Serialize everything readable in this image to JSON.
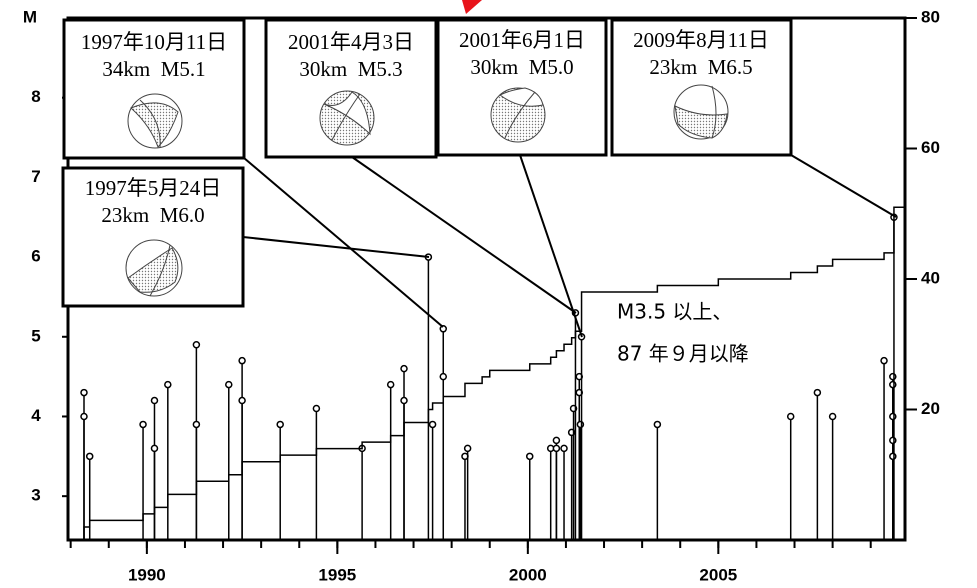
{
  "chart_data": {
    "type": "stem",
    "y_label": "M",
    "xlim": [
      1987.93,
      2009.9
    ],
    "xticks": [
      1990,
      1995,
      2000,
      2005
    ],
    "xminorticks": [
      1988,
      1989,
      1990,
      1991,
      1992,
      1993,
      1994,
      1995,
      1996,
      1997,
      1998,
      1999,
      2000,
      2001,
      2002,
      2003,
      2004,
      2005,
      2006,
      2007,
      2008,
      2009
    ],
    "ylim": [
      2.45,
      9.0
    ],
    "yticks": [
      3,
      4,
      5,
      6,
      7,
      8
    ],
    "y2lim": [
      0,
      80
    ],
    "y2ticks": [
      20,
      40,
      60,
      80
    ],
    "color": "#000000",
    "series": [
      {
        "x": [
          1988.35,
          1988.35,
          1988.5,
          1989.9,
          1990.2,
          1990.2,
          1990.55,
          1991.3,
          1991.3,
          1992.15,
          1992.5,
          1992.5,
          1993.5,
          1994.45,
          1995.65,
          1996.4,
          1996.75,
          1996.75,
          1997.39,
          1997.5,
          1997.78,
          1997.78,
          1998.35,
          1998.42,
          2000.05,
          2000.6,
          2000.75,
          2000.75,
          2000.95,
          2001.15,
          2001.2,
          2001.25,
          2001.35,
          2001.35,
          2001.38,
          2001.41,
          2003.4,
          2006.9,
          2007.6,
          2008.0,
          2009.35,
          2009.58,
          2009.58,
          2009.58,
          2009.58,
          2009.58,
          2009.61
        ],
        "values": [
          4.3,
          4.0,
          3.5,
          3.9,
          4.2,
          3.6,
          4.4,
          4.9,
          3.9,
          4.4,
          4.7,
          4.2,
          3.9,
          4.1,
          3.6,
          4.4,
          4.6,
          4.2,
          6.0,
          3.9,
          5.1,
          4.5,
          3.5,
          3.6,
          3.5,
          3.6,
          3.7,
          3.6,
          3.6,
          3.8,
          4.1,
          5.3,
          4.5,
          4.3,
          3.9,
          5.0,
          3.9,
          4.0,
          4.3,
          4.0,
          4.7,
          4.5,
          4.4,
          4.0,
          3.7,
          3.5,
          6.5
        ]
      },
      {
        "axis": "y2",
        "x": [
          1987.93,
          1988.35,
          1988.5,
          1989.9,
          1990.2,
          1990.55,
          1991.3,
          1992.15,
          1992.5,
          1993.5,
          1994.45,
          1995.65,
          1996.4,
          1996.75,
          1997.39,
          1997.5,
          1997.78,
          1998.35,
          1998.8,
          1999.0,
          2000.05,
          2000.6,
          2000.75,
          2000.95,
          2001.15,
          2001.25,
          2001.41,
          2003.4,
          2005.0,
          2006.9,
          2007.6,
          2008.0,
          2009.35,
          2009.61,
          2009.9
        ],
        "values": [
          0,
          2,
          3,
          4,
          5,
          7,
          9,
          10,
          12,
          13,
          14,
          15,
          16,
          18,
          20,
          21,
          22,
          24,
          25,
          26,
          27,
          28,
          29,
          30,
          31,
          32,
          38,
          39,
          40,
          41,
          42,
          43,
          44,
          51,
          51
        ]
      }
    ],
    "annotations": [
      {
        "date": "1997年10月11日",
        "detail": "34km  M5.1"
      },
      {
        "date": "2001年4月3日",
        "detail": "30km  M5.3"
      },
      {
        "date": "2001年6月1日",
        "detail": "30km  M5.0"
      },
      {
        "date": "2009年8月11日",
        "detail": "23km  M6.5"
      },
      {
        "date": "1997年5月24日",
        "detail": "23km  M6.0"
      }
    ],
    "note": [
      "M3.5 以上、",
      "87 年９月以降"
    ]
  }
}
